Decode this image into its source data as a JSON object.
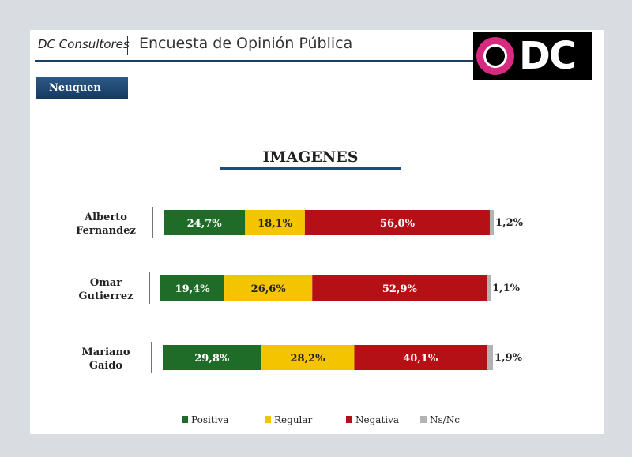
{
  "header": {
    "brand": "DC Consultores",
    "title": "Encuesta de Opinión Pública",
    "logo_text": "DC"
  },
  "region_label": "Neuquen",
  "colors": {
    "positiva": "#1e6c28",
    "regular": "#f4c400",
    "negativa": "#b51015",
    "nsnc": "#b3b3b3",
    "navy": "#1d3d63",
    "logo_pink": "#d62b7e"
  },
  "chart_data": {
    "type": "bar",
    "orientation": "horizontal-stacked",
    "title": "IMAGENES",
    "categories": [
      [
        "Alberto",
        "Fernandez"
      ],
      [
        "Omar",
        "Gutierrez"
      ],
      [
        "Mariano",
        "Gaido"
      ]
    ],
    "series": [
      {
        "name": "Positiva",
        "values": [
          24.7,
          19.4,
          29.8
        ],
        "labels": [
          "24,7%",
          "19,4%",
          "29,8%"
        ]
      },
      {
        "name": "Regular",
        "values": [
          18.1,
          26.6,
          28.2
        ],
        "labels": [
          "18,1%",
          "26,6%",
          "28,2%"
        ]
      },
      {
        "name": "Negativa",
        "values": [
          56.0,
          52.9,
          40.1
        ],
        "labels": [
          "56,0%",
          "52,9%",
          "40,1%"
        ]
      },
      {
        "name": "Ns/Nc",
        "values": [
          1.2,
          1.1,
          1.9
        ],
        "labels": [
          "1,2%",
          "1,1%",
          "1,9%"
        ]
      }
    ],
    "legend_position": "bottom"
  }
}
